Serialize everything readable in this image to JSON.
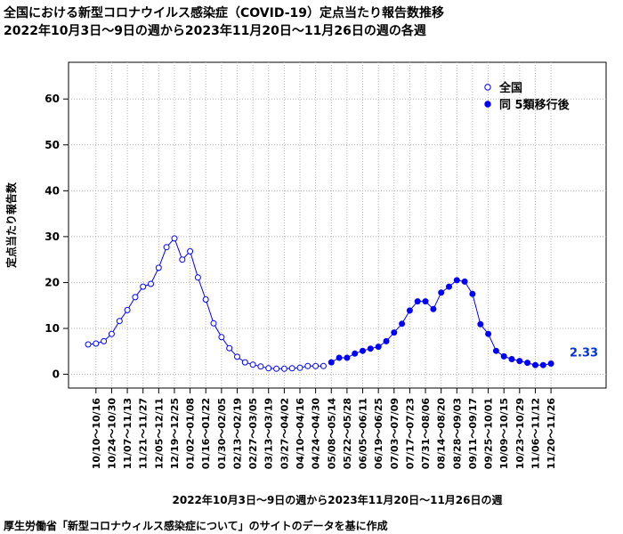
{
  "title_line1": "全国における新型コロナウイルス感染症（COVID-19）定点当たり報告数推移",
  "title_line2": "2022年10月3日～9日の週から2023年11月20日～11月26日の週の各週",
  "source_note": "厚生労働省「新型コロナウィルス感染症について」のサイトのデータを基に作成",
  "colors": {
    "series": "#0000ff",
    "grid": "#b4b4b4",
    "last_label": "#0033dd"
  },
  "chart_data": {
    "type": "line",
    "ylabel": "定点当たり報告数",
    "xlabel": "2022年10月3日～9日の週から2023年11月20日～11月26日の週",
    "ylim": [
      -3,
      68
    ],
    "yticks": [
      0,
      10,
      20,
      30,
      40,
      50,
      60
    ],
    "grid": true,
    "legend_position": "top-right",
    "x_tick_labels": [
      "10/10～10/16",
      "10/24～10/30",
      "11/07～11/13",
      "11/21～11/27",
      "12/05～12/11",
      "12/19～12/25",
      "01/02～01/08",
      "01/16～01/22",
      "01/30～02/05",
      "02/13～02/19",
      "02/27～03/05",
      "03/13～03/19",
      "03/27～04/02",
      "04/10～04/16",
      "04/24～04/30",
      "05/08～05/14",
      "05/22～05/28",
      "06/05～06/11",
      "06/19～06/25",
      "07/03～07/09",
      "07/17～07/23",
      "07/31～08/06",
      "08/14～08/20",
      "08/28～09/03",
      "09/11～09/17",
      "09/25～10/01",
      "10/09～10/15",
      "10/23～10/29",
      "11/06～11/12",
      "11/20～11/26"
    ],
    "series": [
      {
        "name": "全国",
        "marker": "open",
        "values": [
          6.5,
          6.7,
          7.2,
          8.8,
          11.6,
          14.0,
          16.8,
          19.1,
          19.7,
          23.2,
          27.7,
          29.6,
          25.0,
          26.8,
          21.1,
          16.3,
          11.1,
          8.1,
          5.7,
          3.8,
          2.6,
          2.1,
          1.7,
          1.3,
          1.2,
          1.2,
          1.3,
          1.4,
          1.8,
          1.8,
          1.8
        ]
      },
      {
        "name": "同 5類移行後",
        "marker": "filled",
        "values": [
          2.6,
          3.6,
          3.6,
          4.5,
          5.1,
          5.6,
          6.0,
          7.2,
          9.1,
          11.0,
          13.9,
          15.9,
          15.9,
          14.2,
          17.8,
          19.1,
          20.5,
          20.2,
          17.5,
          10.9,
          8.8,
          5.1,
          3.9,
          3.3,
          2.9,
          2.5,
          2.0,
          2.0,
          2.33
        ]
      }
    ],
    "last_value_label": "2.33"
  }
}
